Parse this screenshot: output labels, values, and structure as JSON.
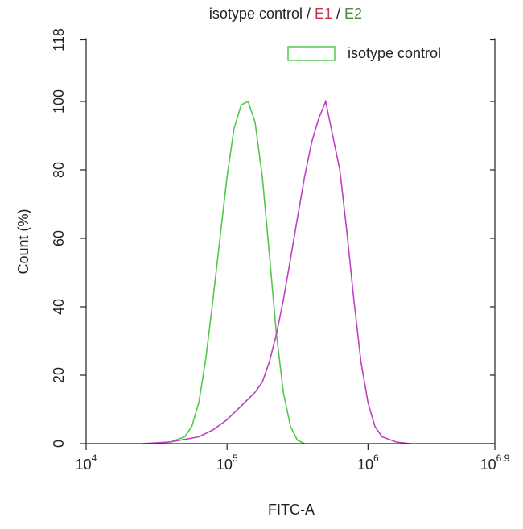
{
  "chart_data": {
    "type": "histogram-overlay",
    "title_parts": [
      {
        "text": "isotype control /",
        "color": "#222222"
      },
      {
        "text": "E1",
        "color": "#c8324b"
      },
      {
        "text": "/",
        "color": "#222222"
      },
      {
        "text": "E2",
        "color": "#4a8a3a"
      }
    ],
    "x_label": "FITC-A",
    "y_label": "Count (%)",
    "x_log": true,
    "xlim": [
      10000,
      7943282
    ],
    "xticks": [
      {
        "value": 10000,
        "label": "10",
        "exponent": "4"
      },
      {
        "value": 100000,
        "label": "10",
        "exponent": "5"
      },
      {
        "value": 1000000,
        "label": "10",
        "exponent": "6"
      },
      {
        "value": 7943282,
        "label": "10",
        "exponent": "6.9"
      }
    ],
    "ylim": [
      0,
      118
    ],
    "yticks": [
      0,
      20,
      40,
      60,
      80,
      100,
      118
    ],
    "legend": "top-right",
    "series": [
      {
        "name": "isotype control",
        "color": "#52c84a",
        "x": [
          31600,
          39800,
          50100,
          56200,
          63100,
          70800,
          79400,
          89100,
          100000,
          112000,
          126000,
          141000,
          158000,
          178000,
          200000,
          224000,
          251000,
          282000,
          316000,
          355000
        ],
        "values": [
          0,
          0.5,
          2,
          5,
          12,
          25,
          42,
          60,
          78,
          92,
          99,
          100,
          94,
          78,
          55,
          32,
          15,
          5,
          1,
          0
        ]
      },
      {
        "color": "#c040c0",
        "x": [
          25100,
          39800,
          63100,
          79400,
          100000,
          126000,
          158000,
          178000,
          200000,
          224000,
          251000,
          282000,
          316000,
          355000,
          398000,
          447000,
          501000,
          562000,
          631000,
          708000,
          794000,
          891000,
          1000000,
          1120000,
          1260000,
          1580000,
          2000000
        ],
        "values": [
          0,
          0.5,
          2,
          4,
          7,
          11,
          15,
          18,
          24,
          32,
          42,
          54,
          66,
          78,
          88,
          95,
          100,
          90,
          80,
          62,
          42,
          24,
          12,
          5,
          2,
          0.5,
          0
        ]
      }
    ]
  }
}
